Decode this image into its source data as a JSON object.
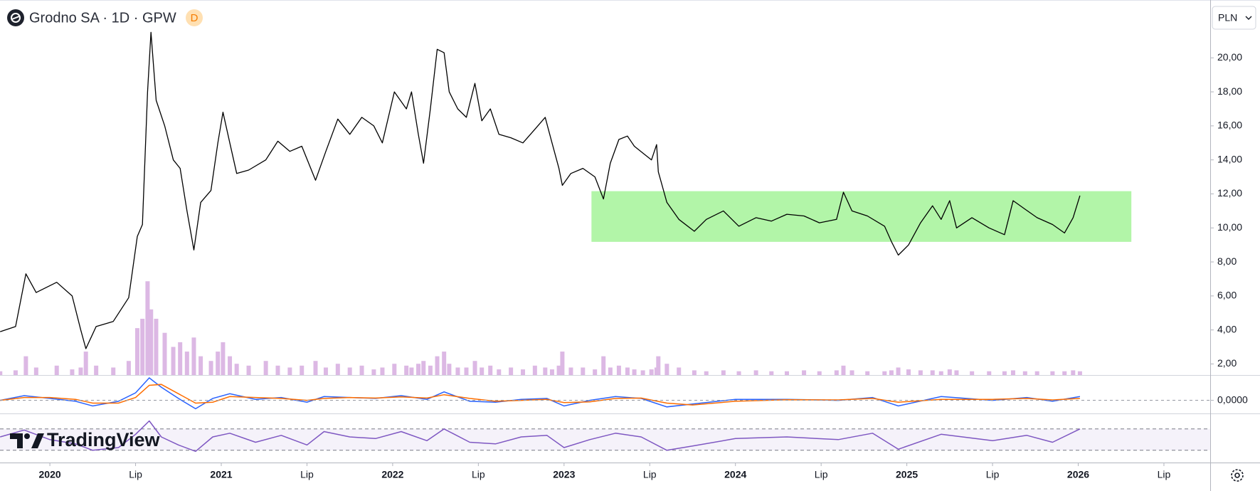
{
  "brand": "TradingView",
  "chart_data": [
    {
      "type": "line",
      "title": "Grodno SA · 1D · GPW",
      "interval_badge": "D",
      "currency": "PLN",
      "x": [
        2019.71,
        2019.8,
        2019.86,
        2019.92,
        2020.04,
        2020.13,
        2020.18,
        2020.21,
        2020.27,
        2020.37,
        2020.46,
        2020.51,
        2020.54,
        2020.57,
        2020.59,
        2020.62,
        2020.67,
        2020.72,
        2020.76,
        2020.8,
        2020.84,
        2020.88,
        2020.94,
        2020.98,
        2021.01,
        2021.05,
        2021.09,
        2021.16,
        2021.26,
        2021.33,
        2021.4,
        2021.47,
        2021.55,
        2021.61,
        2021.68,
        2021.75,
        2021.82,
        2021.89,
        2021.94,
        2022.01,
        2022.08,
        2022.11,
        2022.15,
        2022.18,
        2022.22,
        2022.26,
        2022.3,
        2022.33,
        2022.38,
        2022.43,
        2022.48,
        2022.52,
        2022.57,
        2022.62,
        2022.69,
        2022.76,
        2022.83,
        2022.89,
        2022.93,
        2022.97,
        2022.99,
        2023.04,
        2023.11,
        2023.18,
        2023.23,
        2023.27,
        2023.32,
        2023.37,
        2023.41,
        2023.46,
        2023.51,
        2023.54,
        2023.55,
        2023.6,
        2023.67,
        2023.76,
        2023.83,
        2023.93,
        2024.02,
        2024.12,
        2024.21,
        2024.3,
        2024.4,
        2024.49,
        2024.59,
        2024.63,
        2024.68,
        2024.77,
        2024.87,
        2024.91,
        2024.95,
        2025.01,
        2025.08,
        2025.15,
        2025.2,
        2025.25,
        2025.29,
        2025.38,
        2025.48,
        2025.57,
        2025.62,
        2025.69,
        2025.76,
        2025.85,
        2025.92,
        2025.97,
        2026.01
      ],
      "values": [
        3.9,
        4.2,
        7.3,
        6.2,
        6.8,
        6.0,
        4.0,
        2.9,
        4.2,
        4.5,
        5.9,
        9.5,
        10.2,
        18,
        21.5,
        17.5,
        16,
        14,
        13.5,
        11,
        8.7,
        11.5,
        12.2,
        15,
        16.8,
        15,
        13.2,
        13.4,
        14,
        15.1,
        14.5,
        14.8,
        12.8,
        14.5,
        16.4,
        15.5,
        16.5,
        16,
        15,
        18,
        17,
        18,
        15.5,
        13.8,
        17,
        20.5,
        20.3,
        18,
        17,
        16.5,
        18.5,
        16.3,
        17,
        15.5,
        15.3,
        15,
        15.8,
        16.5,
        15,
        13.5,
        12.5,
        13.2,
        13.5,
        13,
        11.7,
        13.8,
        15.2,
        15.4,
        14.8,
        14.4,
        14,
        14.9,
        13.3,
        11.5,
        10.5,
        9.8,
        10.5,
        11,
        10.1,
        10.6,
        10.4,
        10.8,
        10.7,
        10.3,
        10.5,
        12.1,
        11,
        10.7,
        10.1,
        9.2,
        8.4,
        9,
        10.3,
        11.3,
        10.5,
        11.6,
        10,
        10.6,
        10,
        9.6,
        11.6,
        11.1,
        10.6,
        10.2,
        9.7,
        10.6,
        11.9
      ],
      "color": "#000000",
      "volume": [
        4,
        5,
        20,
        8,
        10,
        6,
        8,
        25,
        10,
        8,
        15,
        50,
        60,
        100,
        70,
        60,
        45,
        30,
        35,
        25,
        40,
        20,
        15,
        25,
        35,
        20,
        12,
        10,
        15,
        10,
        8,
        10,
        15,
        8,
        12,
        8,
        10,
        6,
        8,
        12,
        10,
        8,
        12,
        15,
        10,
        20,
        25,
        12,
        8,
        8,
        15,
        8,
        10,
        6,
        8,
        6,
        10,
        8,
        6,
        10,
        25,
        8,
        8,
        6,
        20,
        8,
        10,
        8,
        6,
        5,
        6,
        8,
        20,
        12,
        8,
        5,
        4,
        5,
        4,
        5,
        4,
        4,
        5,
        4,
        5,
        10,
        5,
        4,
        4,
        5,
        8,
        6,
        5,
        5,
        4,
        6,
        5,
        4,
        4,
        4,
        5,
        4,
        4,
        4,
        4,
        5,
        4
      ],
      "volume_color": "#dcb8e4",
      "y2lim": [
        0,
        400
      ],
      "xlim": [
        2019.709,
        2026.77
      ],
      "ylim": [
        1.35,
        23.4
      ],
      "yticks": [
        {
          "value": 2,
          "label": "2,00"
        },
        {
          "value": 4,
          "label": "4,00"
        },
        {
          "value": 6,
          "label": "6,00"
        },
        {
          "value": 8,
          "label": "8,00"
        },
        {
          "value": 10,
          "label": "10,00"
        },
        {
          "value": 12,
          "label": "12,00"
        },
        {
          "value": 14,
          "label": "14,00"
        },
        {
          "value": 16,
          "label": "16,00"
        },
        {
          "value": 18,
          "label": "18,00"
        },
        {
          "value": 20,
          "label": "20,00"
        }
      ],
      "xticks": [
        {
          "value": 2020,
          "label": "2020"
        },
        {
          "value": 2020.5,
          "label": "Lip"
        },
        {
          "value": 2021,
          "label": "2021"
        },
        {
          "value": 2021.5,
          "label": "Lip"
        },
        {
          "value": 2022,
          "label": "2022"
        },
        {
          "value": 2022.5,
          "label": "Lip"
        },
        {
          "value": 2023,
          "label": "2023"
        },
        {
          "value": 2023.5,
          "label": "Lip"
        },
        {
          "value": 2024,
          "label": "2024"
        },
        {
          "value": 2024.5,
          "label": "Lip"
        },
        {
          "value": 2025,
          "label": "2025"
        },
        {
          "value": 2025.5,
          "label": "Lip"
        },
        {
          "value": 2026,
          "label": "2026"
        },
        {
          "value": 2026.5,
          "label": "Lip"
        }
      ],
      "zone": {
        "x": [
          2023.16,
          2026.31
        ],
        "y": [
          9.18,
          12.16
        ],
        "color": "#b2f5a8"
      }
    },
    {
      "type": "line",
      "x": [
        2019.71,
        2019.85,
        2020.0,
        2020.15,
        2020.25,
        2020.4,
        2020.5,
        2020.58,
        2020.65,
        2020.75,
        2020.85,
        2020.95,
        2021.05,
        2021.2,
        2021.35,
        2021.5,
        2021.6,
        2021.75,
        2021.9,
        2022.05,
        2022.2,
        2022.3,
        2022.45,
        2022.6,
        2022.75,
        2022.9,
        2023.0,
        2023.15,
        2023.3,
        2023.45,
        2023.6,
        2023.75,
        2024.0,
        2024.3,
        2024.6,
        2024.8,
        2024.95,
        2025.2,
        2025.5,
        2025.7,
        2025.85,
        2026.01
      ],
      "series": [
        {
          "color": "#2962ff",
          "values": [
            0,
            0.25,
            0.1,
            -0.05,
            -0.3,
            -0.05,
            0.4,
            1.2,
            0.7,
            0.1,
            -0.45,
            0.1,
            0.35,
            0.05,
            0.15,
            -0.1,
            0.2,
            0.15,
            0.1,
            0.25,
            0.05,
            0.45,
            -0.05,
            -0.1,
            0.05,
            0.1,
            -0.3,
            0,
            0.2,
            0.1,
            -0.35,
            -0.2,
            0.05,
            0.05,
            0,
            0.15,
            -0.3,
            0.2,
            0,
            0.15,
            -0.05,
            0.2
          ]
        },
        {
          "color": "#ff6d00",
          "values": [
            0,
            0.15,
            0.15,
            0.05,
            -0.15,
            -0.15,
            0.15,
            0.8,
            0.85,
            0.35,
            -0.15,
            -0.1,
            0.2,
            0.15,
            0.1,
            0,
            0.1,
            0.15,
            0.12,
            0.18,
            0.12,
            0.3,
            0.1,
            -0.05,
            0,
            0.05,
            -0.12,
            -0.08,
            0.1,
            0.12,
            -0.15,
            -0.25,
            -0.05,
            0.03,
            0.02,
            0.1,
            -0.1,
            0.05,
            0.05,
            0.1,
            0.02,
            0.1
          ]
        }
      ],
      "xlim": [
        2019.709,
        2026.77
      ],
      "ylim": [
        -0.7,
        1.35
      ],
      "yticks": [
        {
          "value": 0,
          "label": "0,0000"
        }
      ]
    },
    {
      "type": "line",
      "x": [
        2019.71,
        2019.85,
        2020.0,
        2020.15,
        2020.25,
        2020.4,
        2020.5,
        2020.58,
        2020.65,
        2020.75,
        2020.85,
        2020.95,
        2021.05,
        2021.2,
        2021.35,
        2021.5,
        2021.6,
        2021.75,
        2021.9,
        2022.05,
        2022.2,
        2022.3,
        2022.45,
        2022.6,
        2022.75,
        2022.9,
        2023.0,
        2023.15,
        2023.3,
        2023.45,
        2023.6,
        2023.75,
        2024.0,
        2024.3,
        2024.6,
        2024.8,
        2024.95,
        2025.2,
        2025.5,
        2025.7,
        2025.85,
        2026.01
      ],
      "values": [
        55,
        68,
        50,
        42,
        30,
        35,
        60,
        85,
        55,
        40,
        28,
        55,
        62,
        45,
        58,
        40,
        65,
        55,
        52,
        65,
        48,
        70,
        45,
        42,
        55,
        58,
        35,
        50,
        62,
        55,
        30,
        38,
        52,
        55,
        50,
        62,
        32,
        60,
        48,
        58,
        45,
        70
      ],
      "color": "#7e57c2",
      "levels": [
        30,
        70
      ],
      "xlim": [
        2019.709,
        2026.77
      ],
      "ylim": [
        7,
        99
      ]
    }
  ]
}
